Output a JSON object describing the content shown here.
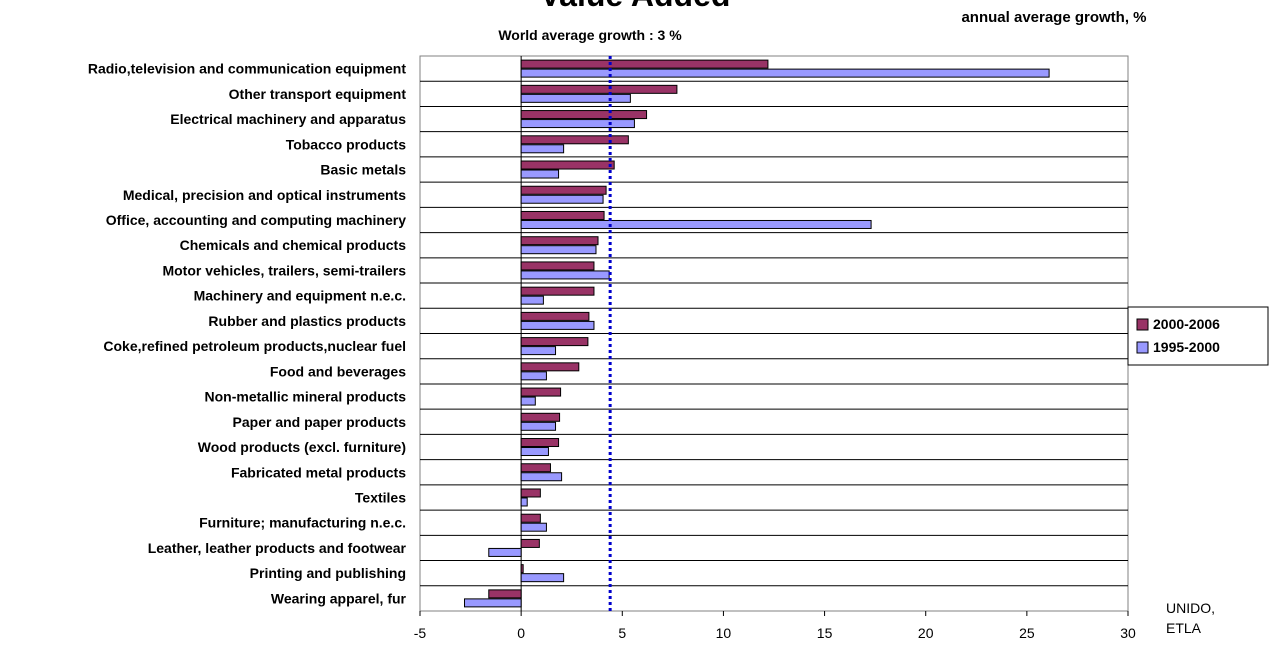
{
  "chart_data": {
    "type": "bar",
    "orientation": "horizontal",
    "title": "Value Added",
    "subtitle": "World average growth : 3 %",
    "unit_label": "annual average growth, %",
    "source_note": [
      "UNIDO,",
      "ETLA"
    ],
    "categories": [
      "Radio,television and communication equipment",
      "Other transport equipment",
      "Electrical machinery and apparatus",
      "Tobacco products",
      "Basic metals",
      "Medical, precision and optical instruments",
      "Office, accounting and computing machinery",
      "Chemicals and chemical products",
      "Motor vehicles, trailers, semi-trailers",
      "Machinery and equipment n.e.c.",
      "Rubber and plastics products",
      "Coke,refined petroleum products,nuclear fuel",
      "Food and beverages",
      "Non-metallic mineral products",
      "Paper and paper products",
      "Wood products (excl. furniture)",
      "Fabricated metal products",
      "Textiles",
      "Furniture; manufacturing n.e.c.",
      "Leather, leather products and footwear",
      "Printing and publishing",
      "Wearing apparel, fur"
    ],
    "series": [
      {
        "name": "2000-2006",
        "color": "#993366",
        "values": [
          12.2,
          7.7,
          6.2,
          5.3,
          4.6,
          4.2,
          4.1,
          3.8,
          3.6,
          3.6,
          3.35,
          3.3,
          2.85,
          1.95,
          1.9,
          1.85,
          1.45,
          0.95,
          0.95,
          0.9,
          0.1,
          -1.6
        ]
      },
      {
        "name": "1995-2000",
        "color": "#9999ff",
        "values": [
          26.1,
          5.4,
          5.6,
          2.1,
          1.85,
          4.05,
          17.3,
          3.7,
          4.35,
          1.1,
          3.6,
          1.7,
          1.25,
          0.7,
          1.7,
          1.35,
          2.0,
          0.3,
          1.25,
          -1.6,
          2.1,
          -2.8
        ]
      }
    ],
    "reference_line": {
      "value": 4.4,
      "color": "#0000cc",
      "style": "dotted"
    },
    "xlim": [
      -5,
      30
    ],
    "xticks": [
      -5,
      0,
      5,
      10,
      15,
      20,
      25,
      30
    ],
    "grid": "horizontal",
    "legend_position": "right"
  }
}
